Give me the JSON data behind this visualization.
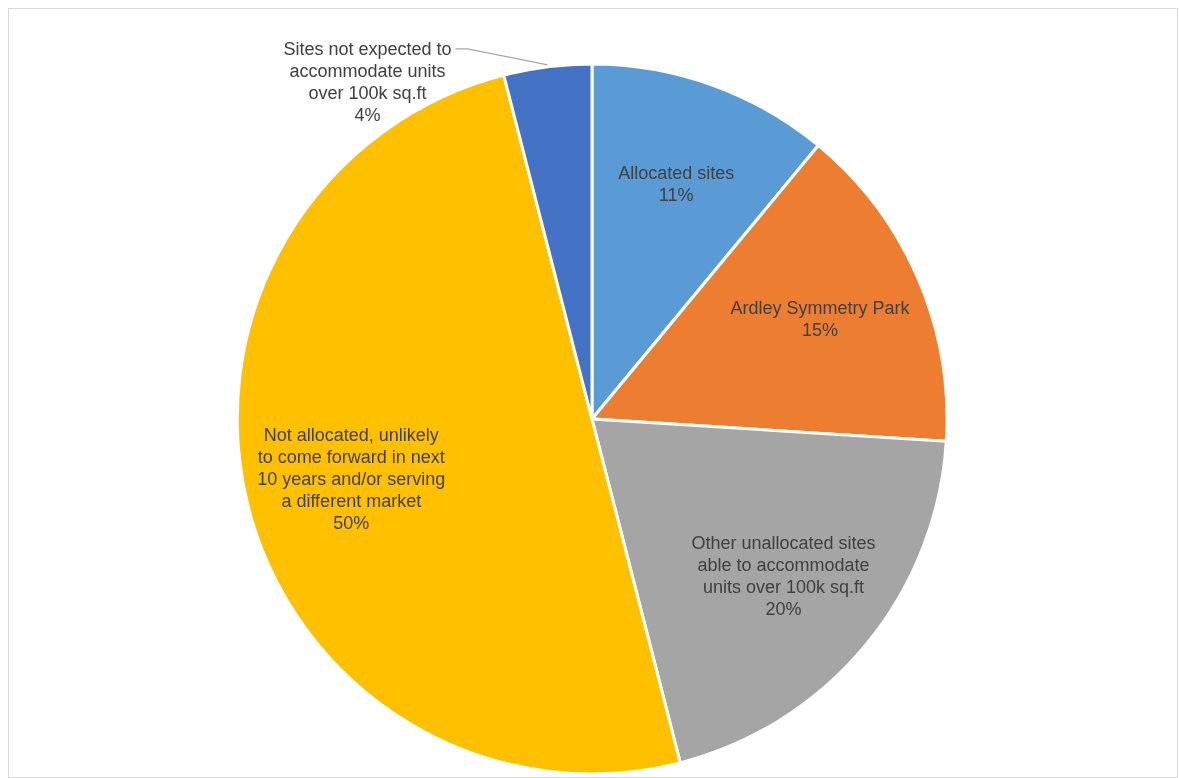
{
  "chart_data": {
    "type": "pie",
    "categories": [
      "Allocated sites",
      "Ardley Symmetry Park",
      "Other unallocated sites able to accommodate units over 100k sq.ft",
      "Not allocated, unlikely to come forward in next 10 years and/or serving a different market",
      "Sites not expected to accommodate units over 100k sq.ft"
    ],
    "values": [
      11,
      15,
      20,
      50,
      4
    ],
    "colors": [
      "#5b9bd5",
      "#ed7d31",
      "#a5a5a5",
      "#ffc000",
      "#4472c4"
    ],
    "value_labels": [
      "11%",
      "15%",
      "20%",
      "50%",
      "4%"
    ]
  }
}
